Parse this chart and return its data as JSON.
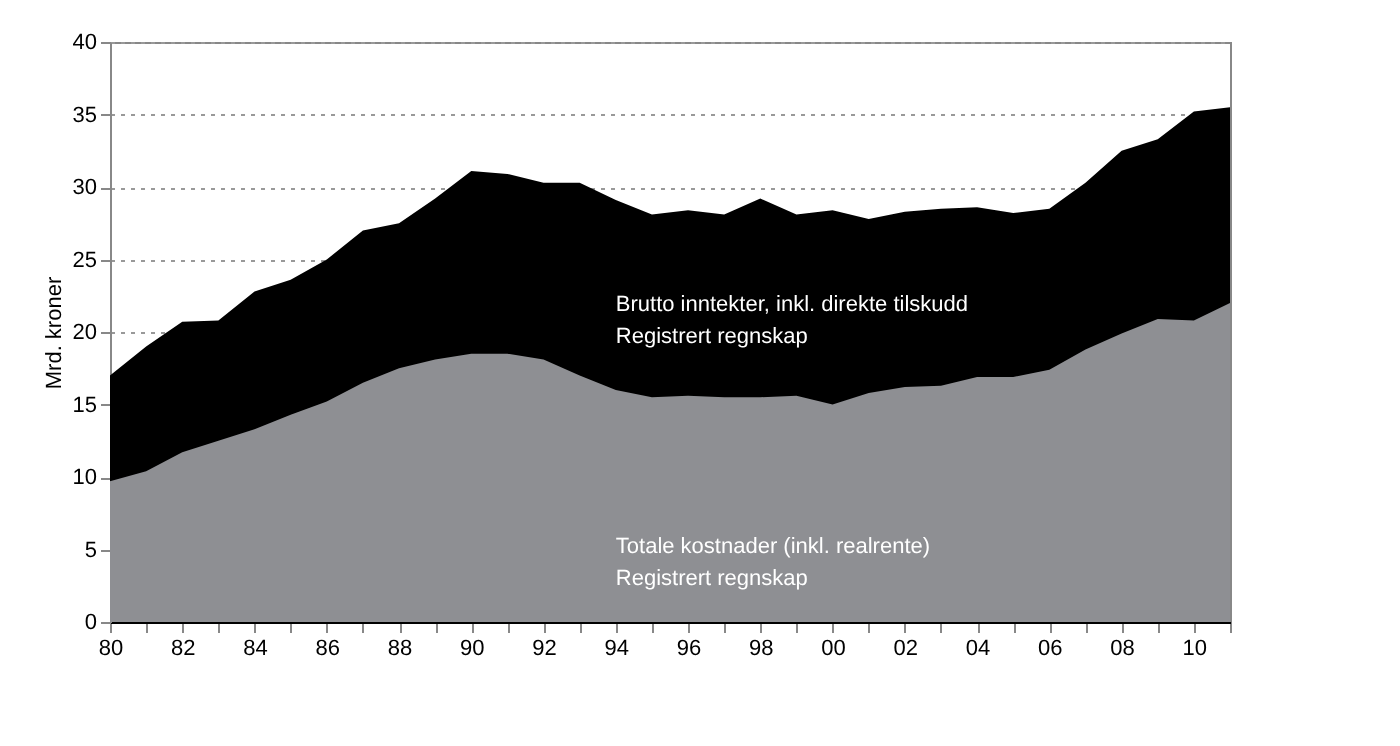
{
  "chart_data": {
    "type": "area",
    "ylabel": "Mrd. kroner",
    "categories": [
      "80",
      null,
      "82",
      null,
      "84",
      null,
      "86",
      null,
      "88",
      null,
      "90",
      null,
      "92",
      null,
      "94",
      null,
      "96",
      null,
      "98",
      null,
      "00",
      null,
      "02",
      null,
      "04",
      null,
      "06",
      null,
      "08",
      null,
      "10",
      null
    ],
    "series": [
      {
        "name": "Brutto inntekter, inkl. direkte tilskudd\nRegistrert regnskap",
        "color": "#000000",
        "values": [
          17,
          19,
          20.7,
          20.8,
          22.8,
          23.6,
          25,
          27,
          27.5,
          29.2,
          31.1,
          30.9,
          30.3,
          30.3,
          29.1,
          28.1,
          28.4,
          28.1,
          29.2,
          28.1,
          28.4,
          27.8,
          28.3,
          28.5,
          28.6,
          28.2,
          28.5,
          30.3,
          32.5,
          33.3,
          35.2,
          35.5
        ]
      },
      {
        "name": "Totale kostnader (inkl. realrente)\nRegistrert regnskap",
        "color": "#8e8f93",
        "values": [
          9.7,
          10.4,
          11.7,
          12.5,
          13.3,
          14.3,
          15.2,
          16.5,
          17.5,
          18.1,
          18.5,
          18.5,
          18.1,
          17,
          16,
          15.5,
          15.6,
          15.5,
          15.5,
          15.6,
          15,
          15.8,
          16.2,
          16.3,
          16.9,
          16.9,
          17.4,
          18.8,
          19.9,
          20.9,
          20.8,
          22
        ]
      }
    ],
    "ylim": [
      0,
      40
    ],
    "yticks": [
      0,
      5,
      10,
      15,
      20,
      25,
      30,
      35,
      40
    ],
    "grid": "y"
  }
}
